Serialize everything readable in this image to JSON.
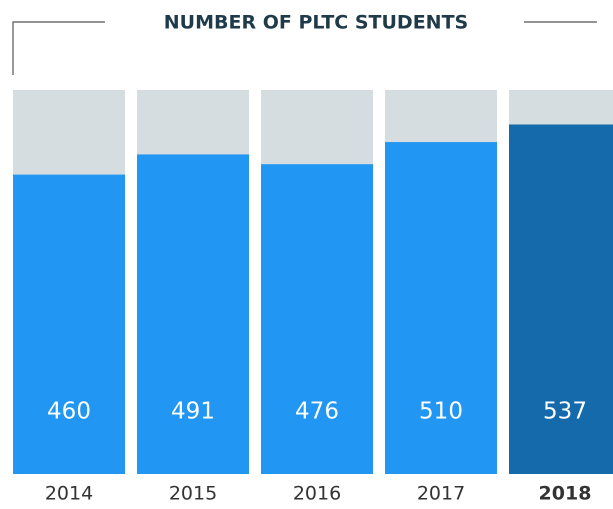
{
  "chart_data": {
    "type": "bar",
    "title": "NUMBER OF PLTC STUDENTS",
    "categories": [
      "2014",
      "2015",
      "2016",
      "2017",
      "2018"
    ],
    "values": [
      460,
      491,
      476,
      510,
      537
    ],
    "colors": [
      "#2196f2",
      "#2196f2",
      "#2196f2",
      "#2196f2",
      "#146aab"
    ],
    "track_color": "#d6dde0",
    "ylim": [
      0,
      590
    ]
  }
}
